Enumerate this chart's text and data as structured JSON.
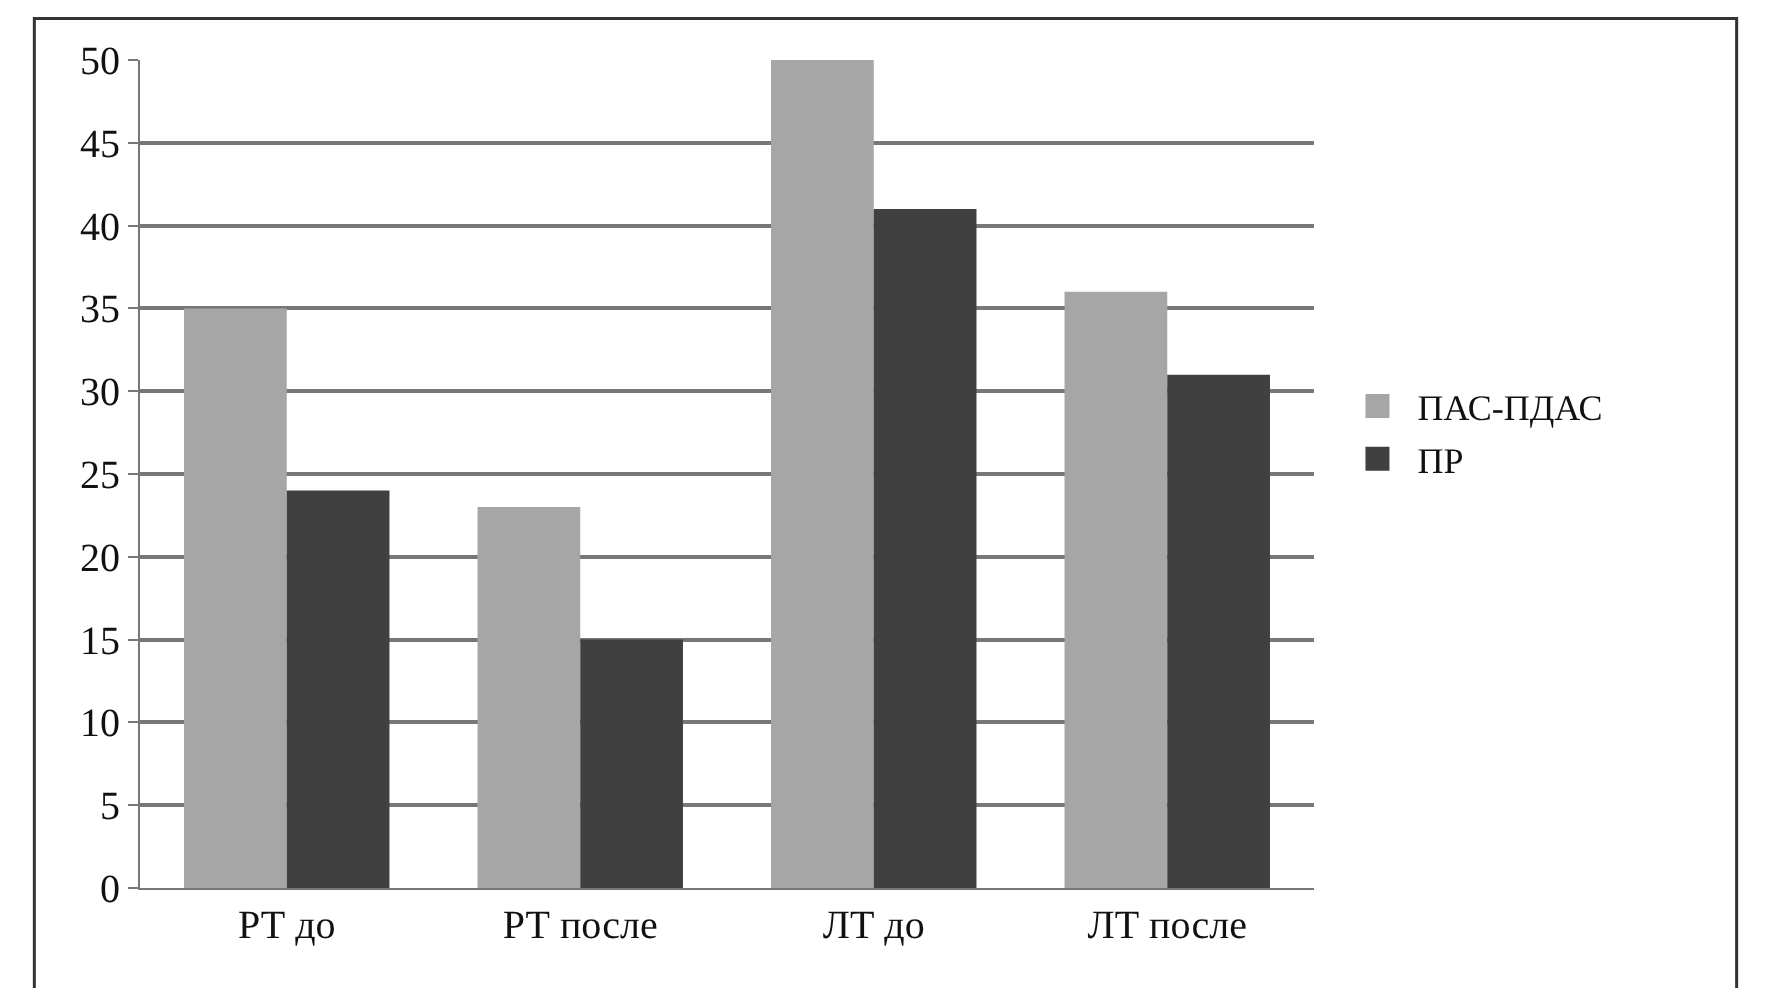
{
  "chart_data": {
    "type": "bar",
    "categories": [
      "РТ до",
      "РТ после",
      "ЛТ до",
      "ЛТ после"
    ],
    "series": [
      {
        "name": "ПАС-ПДАС",
        "color": "#a6a6a6",
        "values": [
          35,
          23,
          50,
          36
        ]
      },
      {
        "name": "ПР",
        "color": "#404040",
        "values": [
          24,
          15,
          41,
          31
        ]
      }
    ],
    "ylim": [
      0,
      50
    ],
    "yticks": [
      0,
      5,
      10,
      15,
      20,
      25,
      30,
      35,
      40,
      45,
      50
    ],
    "grid": "y",
    "legend": "right"
  }
}
